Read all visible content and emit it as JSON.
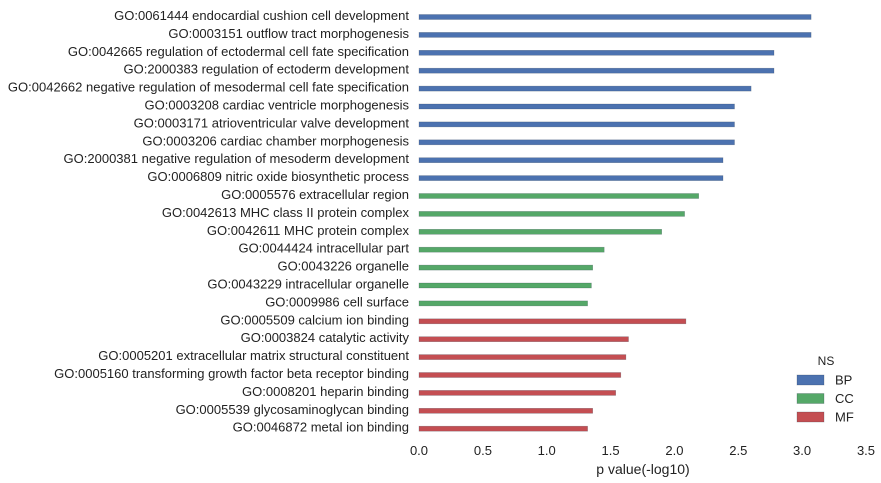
{
  "chart_data": {
    "type": "bar",
    "orientation": "horizontal",
    "xlabel": "p value(-log10)",
    "xlim": [
      0,
      3.5
    ],
    "xticks": [
      "0.0",
      "0.5",
      "1.0",
      "1.5",
      "2.0",
      "2.5",
      "3.0",
      "3.5"
    ],
    "grid": false,
    "legend": {
      "title": "NS",
      "placement": "bottom-right"
    },
    "series": [
      {
        "name": "BP",
        "color": "#4c72b0"
      },
      {
        "name": "CC",
        "color": "#55a868"
      },
      {
        "name": "MF",
        "color": "#c44e52"
      }
    ],
    "bars": [
      {
        "label": "GO:0061444 endocardial cushion cell development",
        "value": 3.07,
        "ns": "BP"
      },
      {
        "label": "GO:0003151 outflow tract morphogenesis",
        "value": 3.07,
        "ns": "BP"
      },
      {
        "label": "GO:0042665 regulation of ectodermal cell fate specification",
        "value": 2.78,
        "ns": "BP"
      },
      {
        "label": "GO:2000383 regulation of ectoderm development",
        "value": 2.78,
        "ns": "BP"
      },
      {
        "label": "GO:0042662 negative regulation of mesodermal cell fate specification",
        "value": 2.6,
        "ns": "BP"
      },
      {
        "label": "GO:0003208 cardiac ventricle morphogenesis",
        "value": 2.47,
        "ns": "BP"
      },
      {
        "label": "GO:0003171 atrioventricular valve development",
        "value": 2.47,
        "ns": "BP"
      },
      {
        "label": "GO:0003206 cardiac chamber morphogenesis",
        "value": 2.47,
        "ns": "BP"
      },
      {
        "label": "GO:2000381 negative regulation of mesoderm development",
        "value": 2.38,
        "ns": "BP"
      },
      {
        "label": "GO:0006809 nitric oxide biosynthetic process",
        "value": 2.38,
        "ns": "BP"
      },
      {
        "label": "GO:0005576 extracellular region",
        "value": 2.19,
        "ns": "CC"
      },
      {
        "label": "GO:0042613 MHC class II protein complex",
        "value": 2.08,
        "ns": "CC"
      },
      {
        "label": "GO:0042611 MHC protein complex",
        "value": 1.9,
        "ns": "CC"
      },
      {
        "label": "GO:0044424 intracellular part",
        "value": 1.45,
        "ns": "CC"
      },
      {
        "label": "GO:0043226 organelle",
        "value": 1.36,
        "ns": "CC"
      },
      {
        "label": "GO:0043229 intracellular organelle",
        "value": 1.35,
        "ns": "CC"
      },
      {
        "label": "GO:0009986 cell surface",
        "value": 1.32,
        "ns": "CC"
      },
      {
        "label": "GO:0005509 calcium ion binding",
        "value": 2.09,
        "ns": "MF"
      },
      {
        "label": "GO:0003824 catalytic activity",
        "value": 1.64,
        "ns": "MF"
      },
      {
        "label": "GO:0005201 extracellular matrix structural constituent",
        "value": 1.62,
        "ns": "MF"
      },
      {
        "label": "GO:0005160 transforming growth factor beta receptor binding",
        "value": 1.58,
        "ns": "MF"
      },
      {
        "label": "GO:0008201 heparin binding",
        "value": 1.54,
        "ns": "MF"
      },
      {
        "label": "GO:0005539 glycosaminoglycan binding",
        "value": 1.36,
        "ns": "MF"
      },
      {
        "label": "GO:0046872 metal ion binding",
        "value": 1.32,
        "ns": "MF"
      }
    ]
  }
}
